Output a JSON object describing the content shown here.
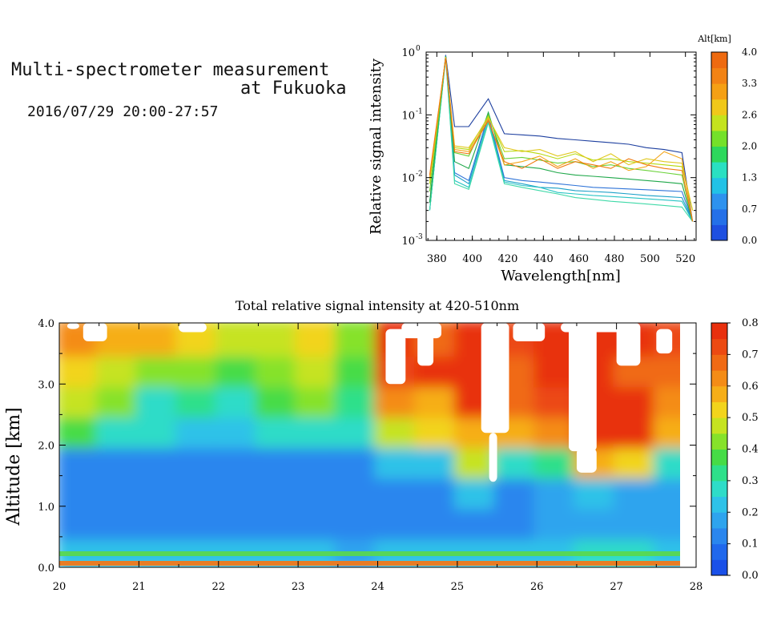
{
  "header": {
    "title_line1": "Multi-spectrometer measurement",
    "title_line2": "at Fukuoka",
    "time_range": "2016/07/29 20:00-27:57"
  },
  "chart_data": [
    {
      "type": "line",
      "xlabel": "Wavelength[nm]",
      "ylabel": "Relative signal intensity",
      "xlim": [
        374,
        526
      ],
      "ylim": [
        0.001,
        1
      ],
      "yscale": "log",
      "x_ticks": [
        "380",
        "400",
        "420",
        "440",
        "460",
        "480",
        "500",
        "520"
      ],
      "y_ticks": [
        "10",
        "10",
        "10",
        "10"
      ],
      "y_tick_exponents": [
        "-3",
        "-2",
        "-1",
        "0"
      ],
      "x": [
        376,
        385,
        390,
        398,
        409,
        418,
        428,
        438,
        448,
        458,
        468,
        478,
        488,
        498,
        508,
        518,
        524
      ],
      "series": [
        {
          "color": "#1d3f9f",
          "values": [
            0.004,
            0.9,
            0.065,
            0.065,
            0.18,
            0.05,
            0.048,
            0.046,
            0.042,
            0.04,
            0.038,
            0.036,
            0.034,
            0.03,
            0.028,
            0.025,
            0.002
          ]
        },
        {
          "color": "#2f74d8",
          "values": [
            0.003,
            0.88,
            0.012,
            0.009,
            0.1,
            0.01,
            0.009,
            0.0085,
            0.008,
            0.0075,
            0.007,
            0.0068,
            0.0066,
            0.0064,
            0.0062,
            0.006,
            0.002
          ]
        },
        {
          "color": "#1aa0c8",
          "values": [
            0.003,
            0.85,
            0.011,
            0.008,
            0.09,
            0.009,
            0.008,
            0.007,
            0.0068,
            0.0062,
            0.006,
            0.0058,
            0.0055,
            0.0052,
            0.005,
            0.0048,
            0.002
          ]
        },
        {
          "color": "#27c4c4",
          "values": [
            0.003,
            0.82,
            0.009,
            0.007,
            0.08,
            0.0085,
            0.0075,
            0.007,
            0.0058,
            0.0055,
            0.0052,
            0.005,
            0.0048,
            0.0046,
            0.0044,
            0.0042,
            0.002
          ]
        },
        {
          "color": "#3fd9a8",
          "values": [
            0.003,
            0.8,
            0.008,
            0.0065,
            0.075,
            0.008,
            0.007,
            0.0062,
            0.0055,
            0.0048,
            0.0045,
            0.0042,
            0.004,
            0.0038,
            0.0036,
            0.0034,
            0.002
          ]
        },
        {
          "color": "#1fa84a",
          "values": [
            0.004,
            0.86,
            0.018,
            0.014,
            0.11,
            0.016,
            0.015,
            0.014,
            0.012,
            0.011,
            0.0105,
            0.01,
            0.0095,
            0.009,
            0.0085,
            0.008,
            0.002
          ]
        },
        {
          "color": "#6bd23a",
          "values": [
            0.006,
            0.84,
            0.025,
            0.022,
            0.1,
            0.02,
            0.021,
            0.019,
            0.017,
            0.018,
            0.015,
            0.016,
            0.014,
            0.013,
            0.012,
            0.011,
            0.002
          ]
        },
        {
          "color": "#b7d90f",
          "values": [
            0.008,
            0.83,
            0.03,
            0.028,
            0.095,
            0.026,
            0.027,
            0.024,
            0.02,
            0.024,
            0.019,
            0.02,
            0.018,
            0.017,
            0.016,
            0.015,
            0.003
          ]
        },
        {
          "color": "#e0c81e",
          "values": [
            0.009,
            0.82,
            0.032,
            0.03,
            0.09,
            0.03,
            0.026,
            0.028,
            0.022,
            0.026,
            0.018,
            0.024,
            0.016,
            0.02,
            0.018,
            0.017,
            0.003
          ]
        },
        {
          "color": "#f3a51a",
          "values": [
            0.01,
            0.81,
            0.028,
            0.026,
            0.085,
            0.016,
            0.018,
            0.022,
            0.015,
            0.02,
            0.014,
            0.018,
            0.013,
            0.015,
            0.026,
            0.02,
            0.002
          ]
        },
        {
          "color": "#f07a0f",
          "values": [
            0.011,
            0.8,
            0.026,
            0.024,
            0.08,
            0.018,
            0.014,
            0.02,
            0.014,
            0.018,
            0.016,
            0.014,
            0.02,
            0.016,
            0.014,
            0.013,
            0.002
          ]
        }
      ],
      "colorbar": {
        "label": "Alt[km]",
        "tick_labels": [
          "4.0",
          "3.3",
          "2.6",
          "2.0",
          "1.3",
          "0.7",
          "0.0"
        ],
        "colors": [
          "#1e4fe0",
          "#2470e8",
          "#2e92ee",
          "#22c2e6",
          "#2ae0c2",
          "#2dd85c",
          "#74e12a",
          "#c4e31e",
          "#f0c81a",
          "#f5a014",
          "#f28314",
          "#ee6a10"
        ]
      }
    },
    {
      "type": "heatmap",
      "title": "Total relative signal intensity at 420-510nm",
      "xlabel": "",
      "ylabel": "Altitude [km]",
      "xlim": [
        20,
        28
      ],
      "ylim": [
        0,
        4
      ],
      "x_ticks": [
        "20",
        "21",
        "22",
        "23",
        "24",
        "25",
        "26",
        "27",
        "28"
      ],
      "y_ticks": [
        "0.0",
        "1.0",
        "2.0",
        "3.0",
        "4.0"
      ],
      "time_bins": [
        20.25,
        20.75,
        21.25,
        21.75,
        22.25,
        22.75,
        23.25,
        23.75,
        24.25,
        24.75,
        25.25,
        25.75,
        26.25,
        26.75,
        27.25,
        27.75
      ],
      "altitude_bins": [
        0.25,
        0.75,
        1.25,
        1.75,
        2.25,
        2.75,
        3.25,
        3.75
      ],
      "values": [
        [
          0.22,
          0.14,
          0.12,
          0.15,
          0.36,
          0.48,
          0.5,
          0.62
        ],
        [
          0.22,
          0.13,
          0.11,
          0.14,
          0.3,
          0.42,
          0.46,
          0.58
        ],
        [
          0.21,
          0.13,
          0.1,
          0.13,
          0.26,
          0.3,
          0.4,
          0.55
        ],
        [
          0.2,
          0.12,
          0.1,
          0.12,
          0.24,
          0.35,
          0.42,
          0.5
        ],
        [
          0.2,
          0.12,
          0.1,
          0.12,
          0.22,
          0.28,
          0.36,
          0.45
        ],
        [
          0.2,
          0.13,
          0.11,
          0.13,
          0.3,
          0.38,
          0.4,
          0.48
        ],
        [
          0.2,
          0.13,
          0.11,
          0.13,
          0.28,
          0.4,
          0.48,
          0.5
        ],
        [
          0.19,
          0.12,
          0.1,
          0.12,
          0.26,
          0.32,
          0.38,
          0.4
        ],
        [
          0.2,
          0.14,
          0.13,
          0.2,
          0.45,
          0.62,
          0.72,
          0.78
        ],
        [
          0.21,
          0.14,
          0.12,
          0.2,
          0.5,
          0.6,
          0.75,
          0.68
        ],
        [
          0.21,
          0.15,
          0.2,
          0.48,
          0.6,
          0.78,
          0.78,
          0.82
        ],
        [
          0.22,
          0.15,
          0.14,
          0.3,
          0.55,
          0.66,
          0.7,
          0.72
        ],
        [
          0.24,
          0.16,
          0.16,
          0.35,
          0.62,
          0.74,
          0.82,
          0.8
        ],
        [
          0.26,
          0.17,
          0.2,
          0.6,
          0.82,
          0.84,
          0.84,
          0.82
        ],
        [
          0.25,
          0.16,
          0.18,
          0.5,
          0.82,
          0.84,
          0.7,
          0.76
        ],
        [
          0.24,
          0.16,
          0.16,
          0.3,
          0.55,
          0.62,
          0.68,
          0.72
        ]
      ],
      "colorbar": {
        "range": [
          0,
          0.8
        ],
        "tick_labels": [
          "0.8",
          "0.7",
          "0.6",
          "0.5",
          "0.4",
          "0.3",
          "0.2",
          "0.1",
          "0.0"
        ],
        "colors": [
          "#1a50e8",
          "#2068ec",
          "#2a86ee",
          "#2ea4ee",
          "#2ec2e8",
          "#2edcc8",
          "#2ee08a",
          "#46dc46",
          "#86e22a",
          "#c6e320",
          "#f2d41c",
          "#f6ae18",
          "#f48c16",
          "#f06a14",
          "#ec4a12",
          "#e8300e"
        ]
      }
    }
  ]
}
